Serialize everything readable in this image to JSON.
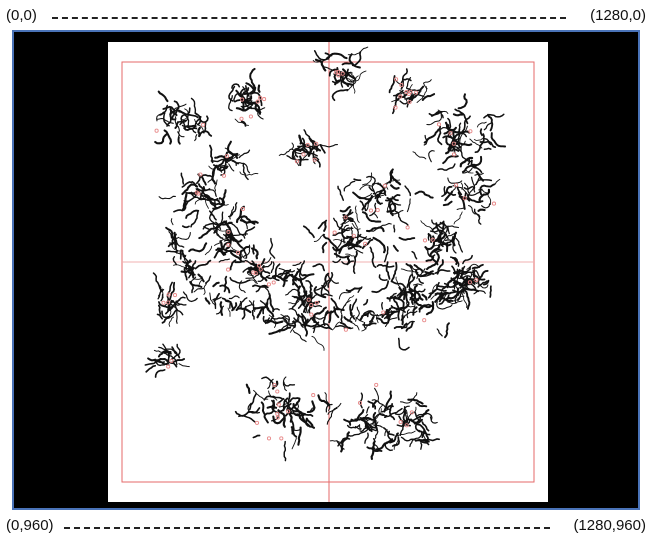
{
  "coordinates": {
    "top_left": "(0,0)",
    "top_right": "(1280,0)",
    "bottom_left": "(0,960)",
    "bottom_right": "(1280,960)"
  },
  "colors": {
    "background": "#000000",
    "sheet": "#ffffff",
    "frame_border": "#4a73b8",
    "crosshair": "#e46a6a",
    "markers": "#e88a8a",
    "specimen": "#111111"
  }
}
